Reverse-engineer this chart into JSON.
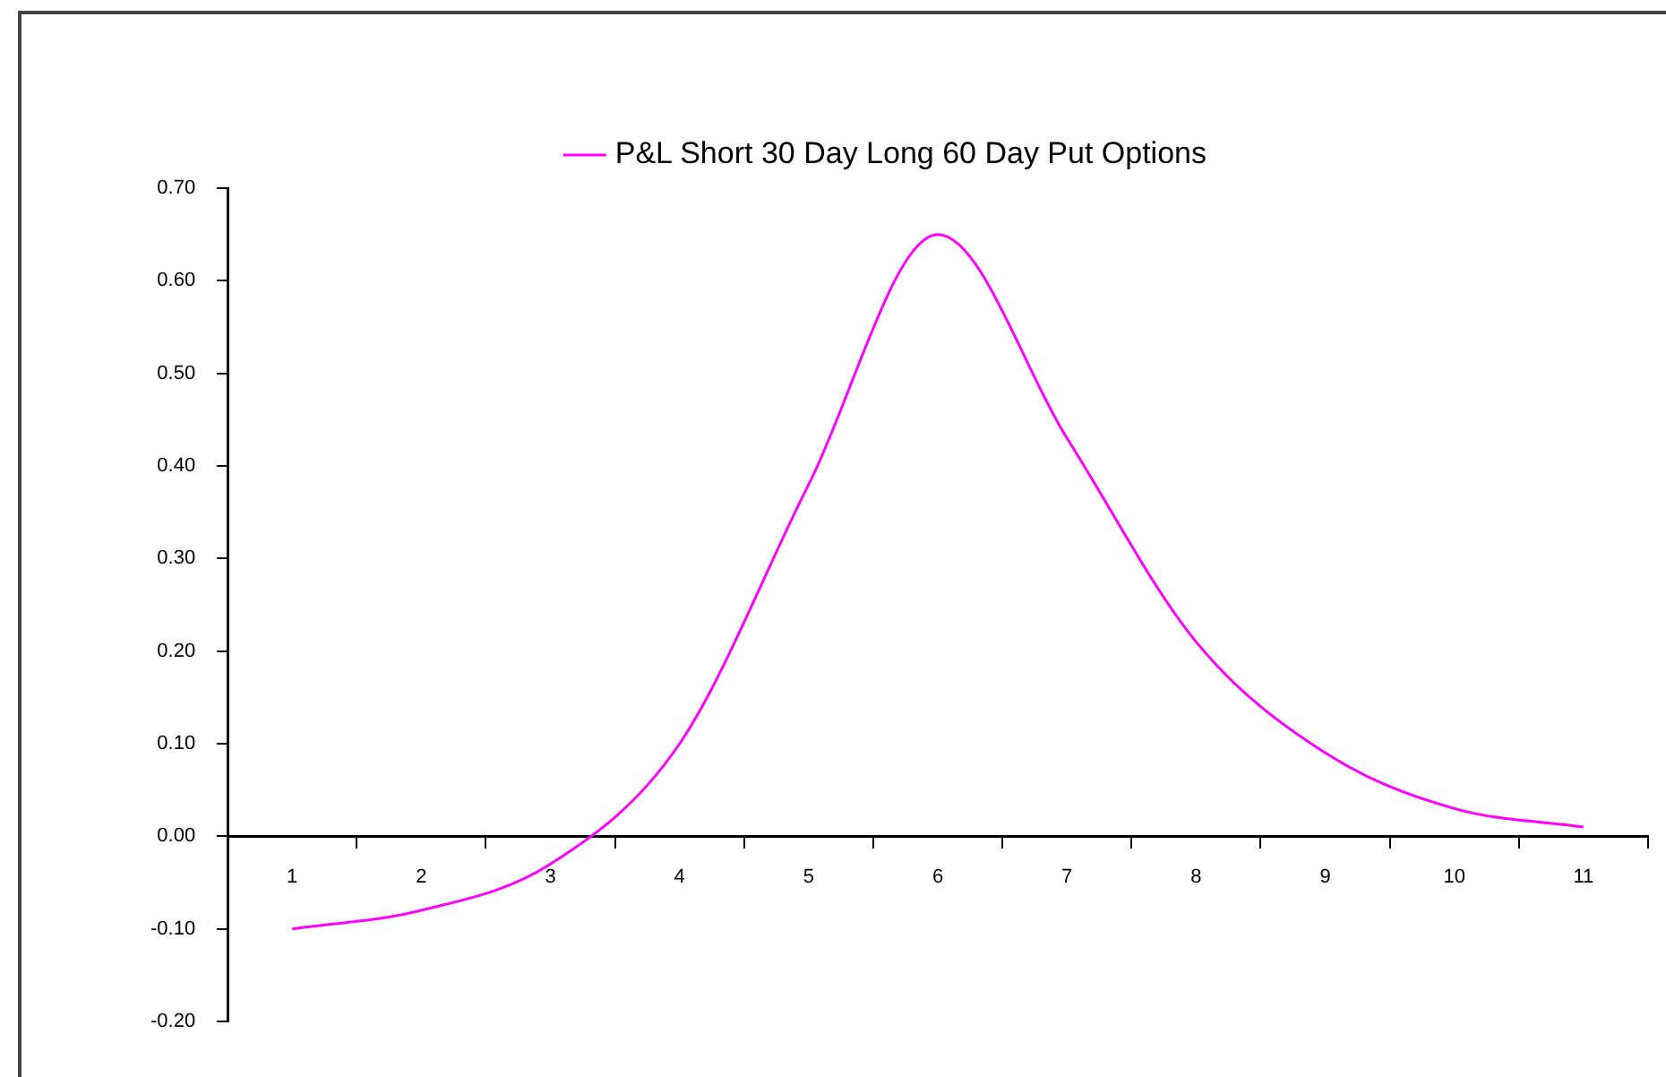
{
  "chart_data": {
    "type": "line",
    "categories": [
      "1",
      "2",
      "3",
      "4",
      "5",
      "6",
      "7",
      "8",
      "9",
      "10",
      "11"
    ],
    "series": [
      {
        "name": "P&L Short 30 Day Long 60 Day Put Options",
        "color": "#ff00ff",
        "values": [
          -0.1,
          -0.08,
          -0.03,
          0.1,
          0.38,
          0.65,
          0.43,
          0.21,
          0.09,
          0.03,
          0.01
        ]
      }
    ],
    "ylim": [
      -0.2,
      0.7
    ],
    "yticks": [
      {
        "value": -0.2,
        "label": "-0.20"
      },
      {
        "value": -0.1,
        "label": "-0.10"
      },
      {
        "value": 0,
        "label": "0.00"
      },
      {
        "value": 0.1,
        "label": "0.10"
      },
      {
        "value": 0.2,
        "label": "0.20"
      },
      {
        "value": 0.3,
        "label": "0.30"
      },
      {
        "value": 0.4,
        "label": "0.40"
      },
      {
        "value": 0.5,
        "label": "0.50"
      },
      {
        "value": 0.6,
        "label": "0.60"
      },
      {
        "value": 0.7,
        "label": "0.70"
      }
    ],
    "legend": "top",
    "grid": false,
    "marker": "none",
    "line_style": "solid"
  }
}
